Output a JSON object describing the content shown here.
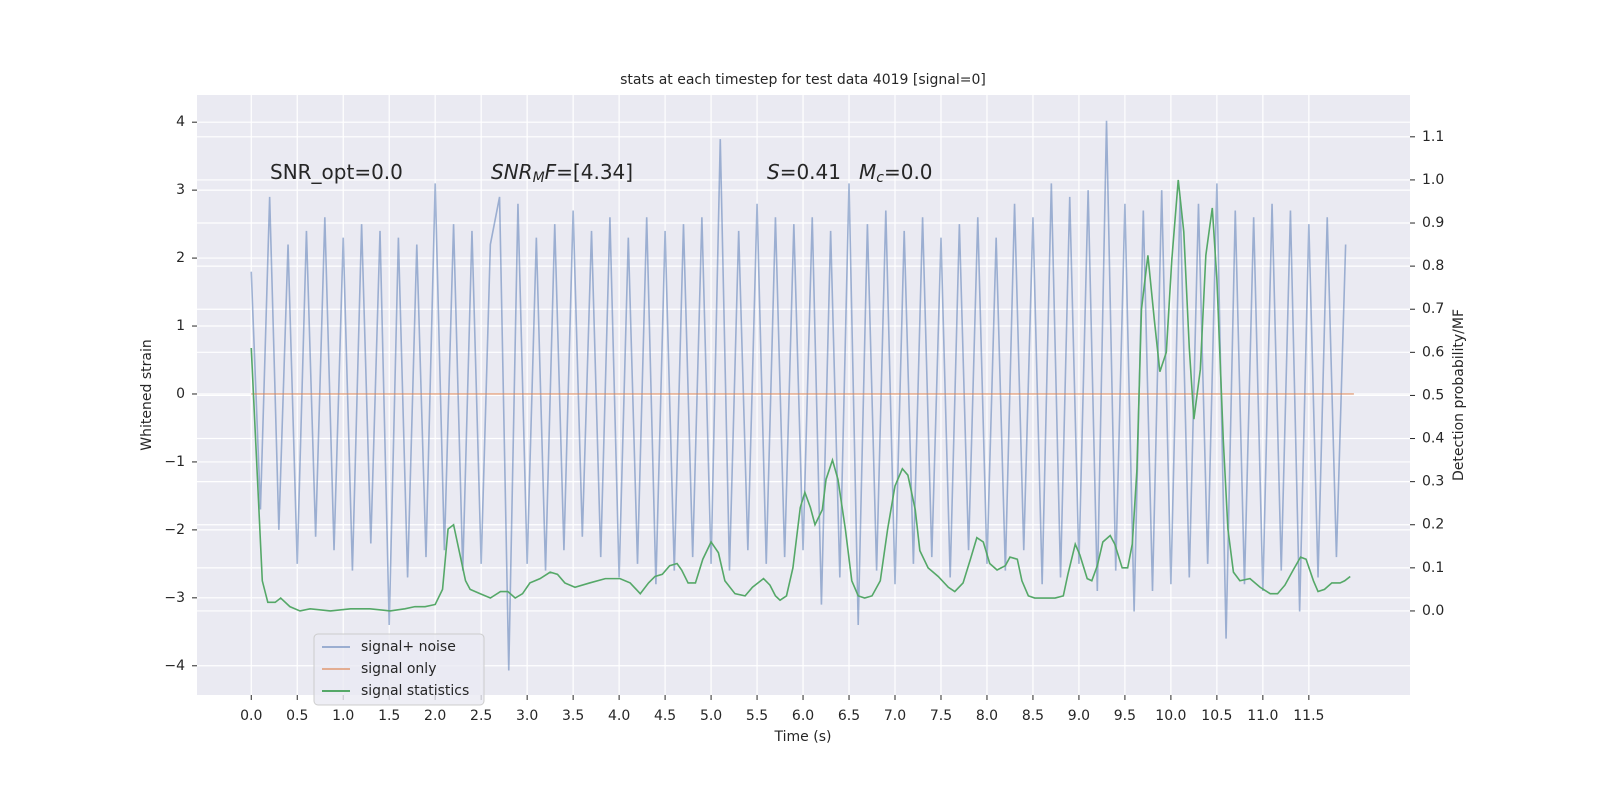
{
  "chart_data": {
    "type": "line",
    "title": "stats at each timestep for test data 4019 [signal=0]",
    "xlabel": "Time (s)",
    "ylabel": "Whitened strain",
    "y2label": "Detection probability/MF",
    "xlim": [
      -0.59,
      12.6
    ],
    "ylim": [
      -4.43,
      4.4
    ],
    "y2lim": [
      -0.195,
      1.197
    ],
    "xticks": [
      {
        "value": 0,
        "label": "0.0"
      },
      0.5,
      {
        "value": 1,
        "label": "1.0"
      },
      1.5,
      {
        "value": 2,
        "label": "2.0"
      },
      2.5,
      {
        "value": 3,
        "label": "3.0"
      },
      3.5,
      {
        "value": 4,
        "label": "4.0"
      },
      4.5,
      {
        "value": 5,
        "label": "5.0"
      },
      5.5,
      {
        "value": 6,
        "label": "6.0"
      },
      6.5,
      {
        "value": 7,
        "label": "7.0"
      },
      7.5,
      {
        "value": 8,
        "label": "8.0"
      },
      8.5,
      {
        "value": 9,
        "label": "9.0"
      },
      9.5,
      {
        "value": 10,
        "label": "10.0"
      },
      10.5,
      {
        "value": 11,
        "label": "11.0"
      },
      11.5
    ],
    "yticks": [
      {
        "value": -4,
        "label": "−4"
      },
      {
        "value": -3,
        "label": "−3"
      },
      {
        "value": -2,
        "label": "−2"
      },
      {
        "value": -1,
        "label": "−1"
      },
      0,
      1,
      2,
      3,
      4
    ],
    "y2ticks": [
      {
        "value": 0,
        "label": "0.0"
      },
      0.1,
      0.2,
      0.3,
      0.4,
      0.5,
      0.6,
      0.7,
      0.8,
      0.9,
      {
        "value": 1,
        "label": "1.0"
      },
      1.1
    ],
    "grid": true,
    "legend": "lower left",
    "annotations": [
      {
        "parts": [
          {
            "text": "SNR_opt=0.0"
          }
        ]
      },
      {
        "parts": [
          {
            "text": "SNR",
            "italic": true
          },
          {
            "text": "M",
            "italic": true,
            "sub": true
          },
          {
            "text": "F",
            "italic": true
          },
          {
            "text": "=[4.34]"
          }
        ]
      },
      {
        "parts": [
          {
            "text": "S",
            "italic": true
          },
          {
            "text": "=0.41"
          }
        ]
      },
      {
        "parts": [
          {
            "text": "M",
            "italic": true
          },
          {
            "text": "c",
            "italic": true,
            "sub": true
          },
          {
            "text": "=0.0"
          }
        ]
      }
    ],
    "series": [
      {
        "name": "signal+ noise",
        "color": "#4c72b0",
        "opacity": 0.5,
        "x": [
          0,
          0.1,
          0.2,
          0.3,
          0.4,
          0.5,
          0.6,
          0.7,
          0.8,
          0.9,
          1,
          1.1,
          1.2,
          1.3,
          1.4,
          1.5,
          1.6,
          1.7,
          1.8,
          1.9,
          2,
          2.1,
          2.2,
          2.3,
          2.4,
          2.5,
          2.6,
          2.7,
          2.8,
          2.9,
          3,
          3.1,
          3.2,
          3.3,
          3.4,
          3.5,
          3.6,
          3.7,
          3.8,
          3.9,
          4,
          4.1,
          4.2,
          4.3,
          4.4,
          4.5,
          4.6,
          4.7,
          4.8,
          4.9,
          5,
          5.1,
          5.2,
          5.3,
          5.4,
          5.5,
          5.6,
          5.7,
          5.8,
          5.9,
          6,
          6.1,
          6.2,
          6.3,
          6.4,
          6.5,
          6.6,
          6.7,
          6.8,
          6.9,
          7,
          7.1,
          7.2,
          7.3,
          7.4,
          7.5,
          7.6,
          7.7,
          7.8,
          7.9,
          8,
          8.1,
          8.2,
          8.3,
          8.4,
          8.5,
          8.6,
          8.7,
          8.8,
          8.9,
          9,
          9.1,
          9.2,
          9.3,
          9.4,
          9.5,
          9.6,
          9.7,
          9.8,
          9.9,
          10,
          10.1,
          10.2,
          10.3,
          10.4,
          10.5,
          10.6,
          10.7,
          10.8,
          10.9,
          11,
          11.1,
          11.2,
          11.3,
          11.4,
          11.5,
          11.6,
          11.7,
          11.8,
          11.9
        ],
        "values": [
          1.8,
          -1.7,
          2.9,
          -2.0,
          2.2,
          -2.5,
          2.4,
          -2.1,
          2.6,
          -2.3,
          2.3,
          -2.6,
          2.5,
          -2.2,
          2.4,
          -3.4,
          2.3,
          -2.7,
          2.2,
          -2.4,
          3.1,
          -2.3,
          2.5,
          -2.6,
          2.4,
          -2.5,
          2.2,
          2.9,
          -4.07,
          2.8,
          -2.5,
          2.3,
          -2.6,
          2.5,
          -2.3,
          2.7,
          -2.1,
          2.4,
          -2.4,
          2.6,
          -2.7,
          2.3,
          -2.5,
          2.6,
          -2.8,
          2.4,
          -2.6,
          2.5,
          -2.4,
          2.6,
          -2.5,
          3.75,
          -2.6,
          2.4,
          -2.3,
          2.8,
          -2.5,
          2.6,
          -2.4,
          2.5,
          -2.3,
          2.6,
          -3.1,
          2.4,
          -2.7,
          3.1,
          -3.4,
          2.5,
          -2.6,
          2.7,
          -2.8,
          2.4,
          -2.5,
          2.6,
          -2.4,
          2.3,
          -2.7,
          2.5,
          -2.3,
          2.6,
          -2.5,
          2.3,
          -2.6,
          2.8,
          -2.3,
          2.6,
          -2.8,
          3.1,
          -2.7,
          2.9,
          -2.5,
          3.0,
          -2.9,
          4.02,
          -2.6,
          2.8,
          -3.2,
          2.7,
          -2.9,
          3.0,
          -2.8,
          2.9,
          -2.7,
          2.8,
          -2.5,
          3.1,
          -3.6,
          2.7,
          -2.8,
          2.6,
          -2.9,
          2.8,
          -2.6,
          2.7,
          -3.2,
          2.5,
          -2.7,
          2.6,
          -2.4,
          2.2
        ]
      },
      {
        "name": "signal only",
        "color": "#dd8452",
        "opacity": 0.6,
        "x": [
          0,
          11.99
        ],
        "values": [
          0,
          0
        ]
      },
      {
        "name": "signal statistics",
        "color": "#55a868",
        "axis": "y2",
        "x": [
          0,
          0.12,
          0.18,
          0.26,
          0.32,
          0.42,
          0.53,
          0.64,
          0.86,
          1.08,
          1.29,
          1.51,
          1.67,
          1.78,
          1.89,
          2.0,
          2.08,
          2.14,
          2.2,
          2.27,
          2.33,
          2.38,
          2.49,
          2.6,
          2.71,
          2.79,
          2.87,
          2.95,
          3.03,
          3.14,
          3.25,
          3.33,
          3.41,
          3.52,
          3.68,
          3.85,
          4.01,
          4.12,
          4.23,
          4.32,
          4.39,
          4.47,
          4.55,
          4.63,
          4.68,
          4.75,
          4.83,
          4.91,
          5.0,
          5.08,
          5.15,
          5.26,
          5.37,
          5.45,
          5.57,
          5.64,
          5.7,
          5.75,
          5.82,
          5.89,
          5.97,
          6.02,
          6.08,
          6.13,
          6.21,
          6.25,
          6.32,
          6.38,
          6.46,
          6.53,
          6.6,
          6.67,
          6.75,
          6.84,
          6.92,
          7.0,
          7.08,
          7.14,
          7.22,
          7.27,
          7.36,
          7.47,
          7.58,
          7.65,
          7.74,
          7.82,
          7.89,
          7.96,
          8.03,
          8.11,
          8.2,
          8.25,
          8.33,
          8.38,
          8.45,
          8.52,
          8.63,
          8.74,
          8.83,
          8.88,
          8.96,
          9.01,
          9.09,
          9.14,
          9.2,
          9.26,
          9.34,
          9.39,
          9.47,
          9.53,
          9.58,
          9.63,
          9.68,
          9.75,
          9.82,
          9.88,
          9.95,
          10.01,
          10.08,
          10.14,
          10.2,
          10.25,
          10.32,
          10.38,
          10.45,
          10.5,
          10.57,
          10.62,
          10.68,
          10.75,
          10.86,
          10.97,
          11.08,
          11.16,
          11.24,
          11.33,
          11.41,
          11.47,
          11.55,
          11.6,
          11.67,
          11.75,
          11.84,
          11.89,
          11.95
        ],
        "values": [
          0.61,
          0.07,
          0.02,
          0.02,
          0.03,
          0.01,
          0.0,
          0.005,
          0.0,
          0.005,
          0.005,
          0.0,
          0.005,
          0.01,
          0.01,
          0.015,
          0.05,
          0.19,
          0.2,
          0.13,
          0.07,
          0.05,
          0.04,
          0.03,
          0.045,
          0.045,
          0.03,
          0.04,
          0.065,
          0.075,
          0.09,
          0.085,
          0.065,
          0.055,
          0.065,
          0.075,
          0.075,
          0.065,
          0.04,
          0.065,
          0.08,
          0.085,
          0.105,
          0.11,
          0.095,
          0.065,
          0.065,
          0.12,
          0.16,
          0.135,
          0.07,
          0.04,
          0.035,
          0.055,
          0.075,
          0.06,
          0.035,
          0.025,
          0.035,
          0.1,
          0.24,
          0.275,
          0.24,
          0.2,
          0.235,
          0.305,
          0.35,
          0.305,
          0.19,
          0.07,
          0.035,
          0.03,
          0.035,
          0.07,
          0.19,
          0.29,
          0.33,
          0.315,
          0.235,
          0.14,
          0.1,
          0.08,
          0.055,
          0.045,
          0.065,
          0.12,
          0.17,
          0.16,
          0.11,
          0.095,
          0.105,
          0.125,
          0.12,
          0.07,
          0.035,
          0.03,
          0.03,
          0.03,
          0.035,
          0.085,
          0.155,
          0.13,
          0.075,
          0.07,
          0.105,
          0.16,
          0.175,
          0.155,
          0.1,
          0.1,
          0.155,
          0.325,
          0.7,
          0.825,
          0.675,
          0.555,
          0.6,
          0.815,
          1.0,
          0.88,
          0.61,
          0.445,
          0.56,
          0.825,
          0.935,
          0.77,
          0.395,
          0.19,
          0.09,
          0.07,
          0.075,
          0.055,
          0.04,
          0.04,
          0.06,
          0.095,
          0.125,
          0.12,
          0.07,
          0.045,
          0.05,
          0.065,
          0.065,
          0.07,
          0.08
        ]
      }
    ]
  }
}
